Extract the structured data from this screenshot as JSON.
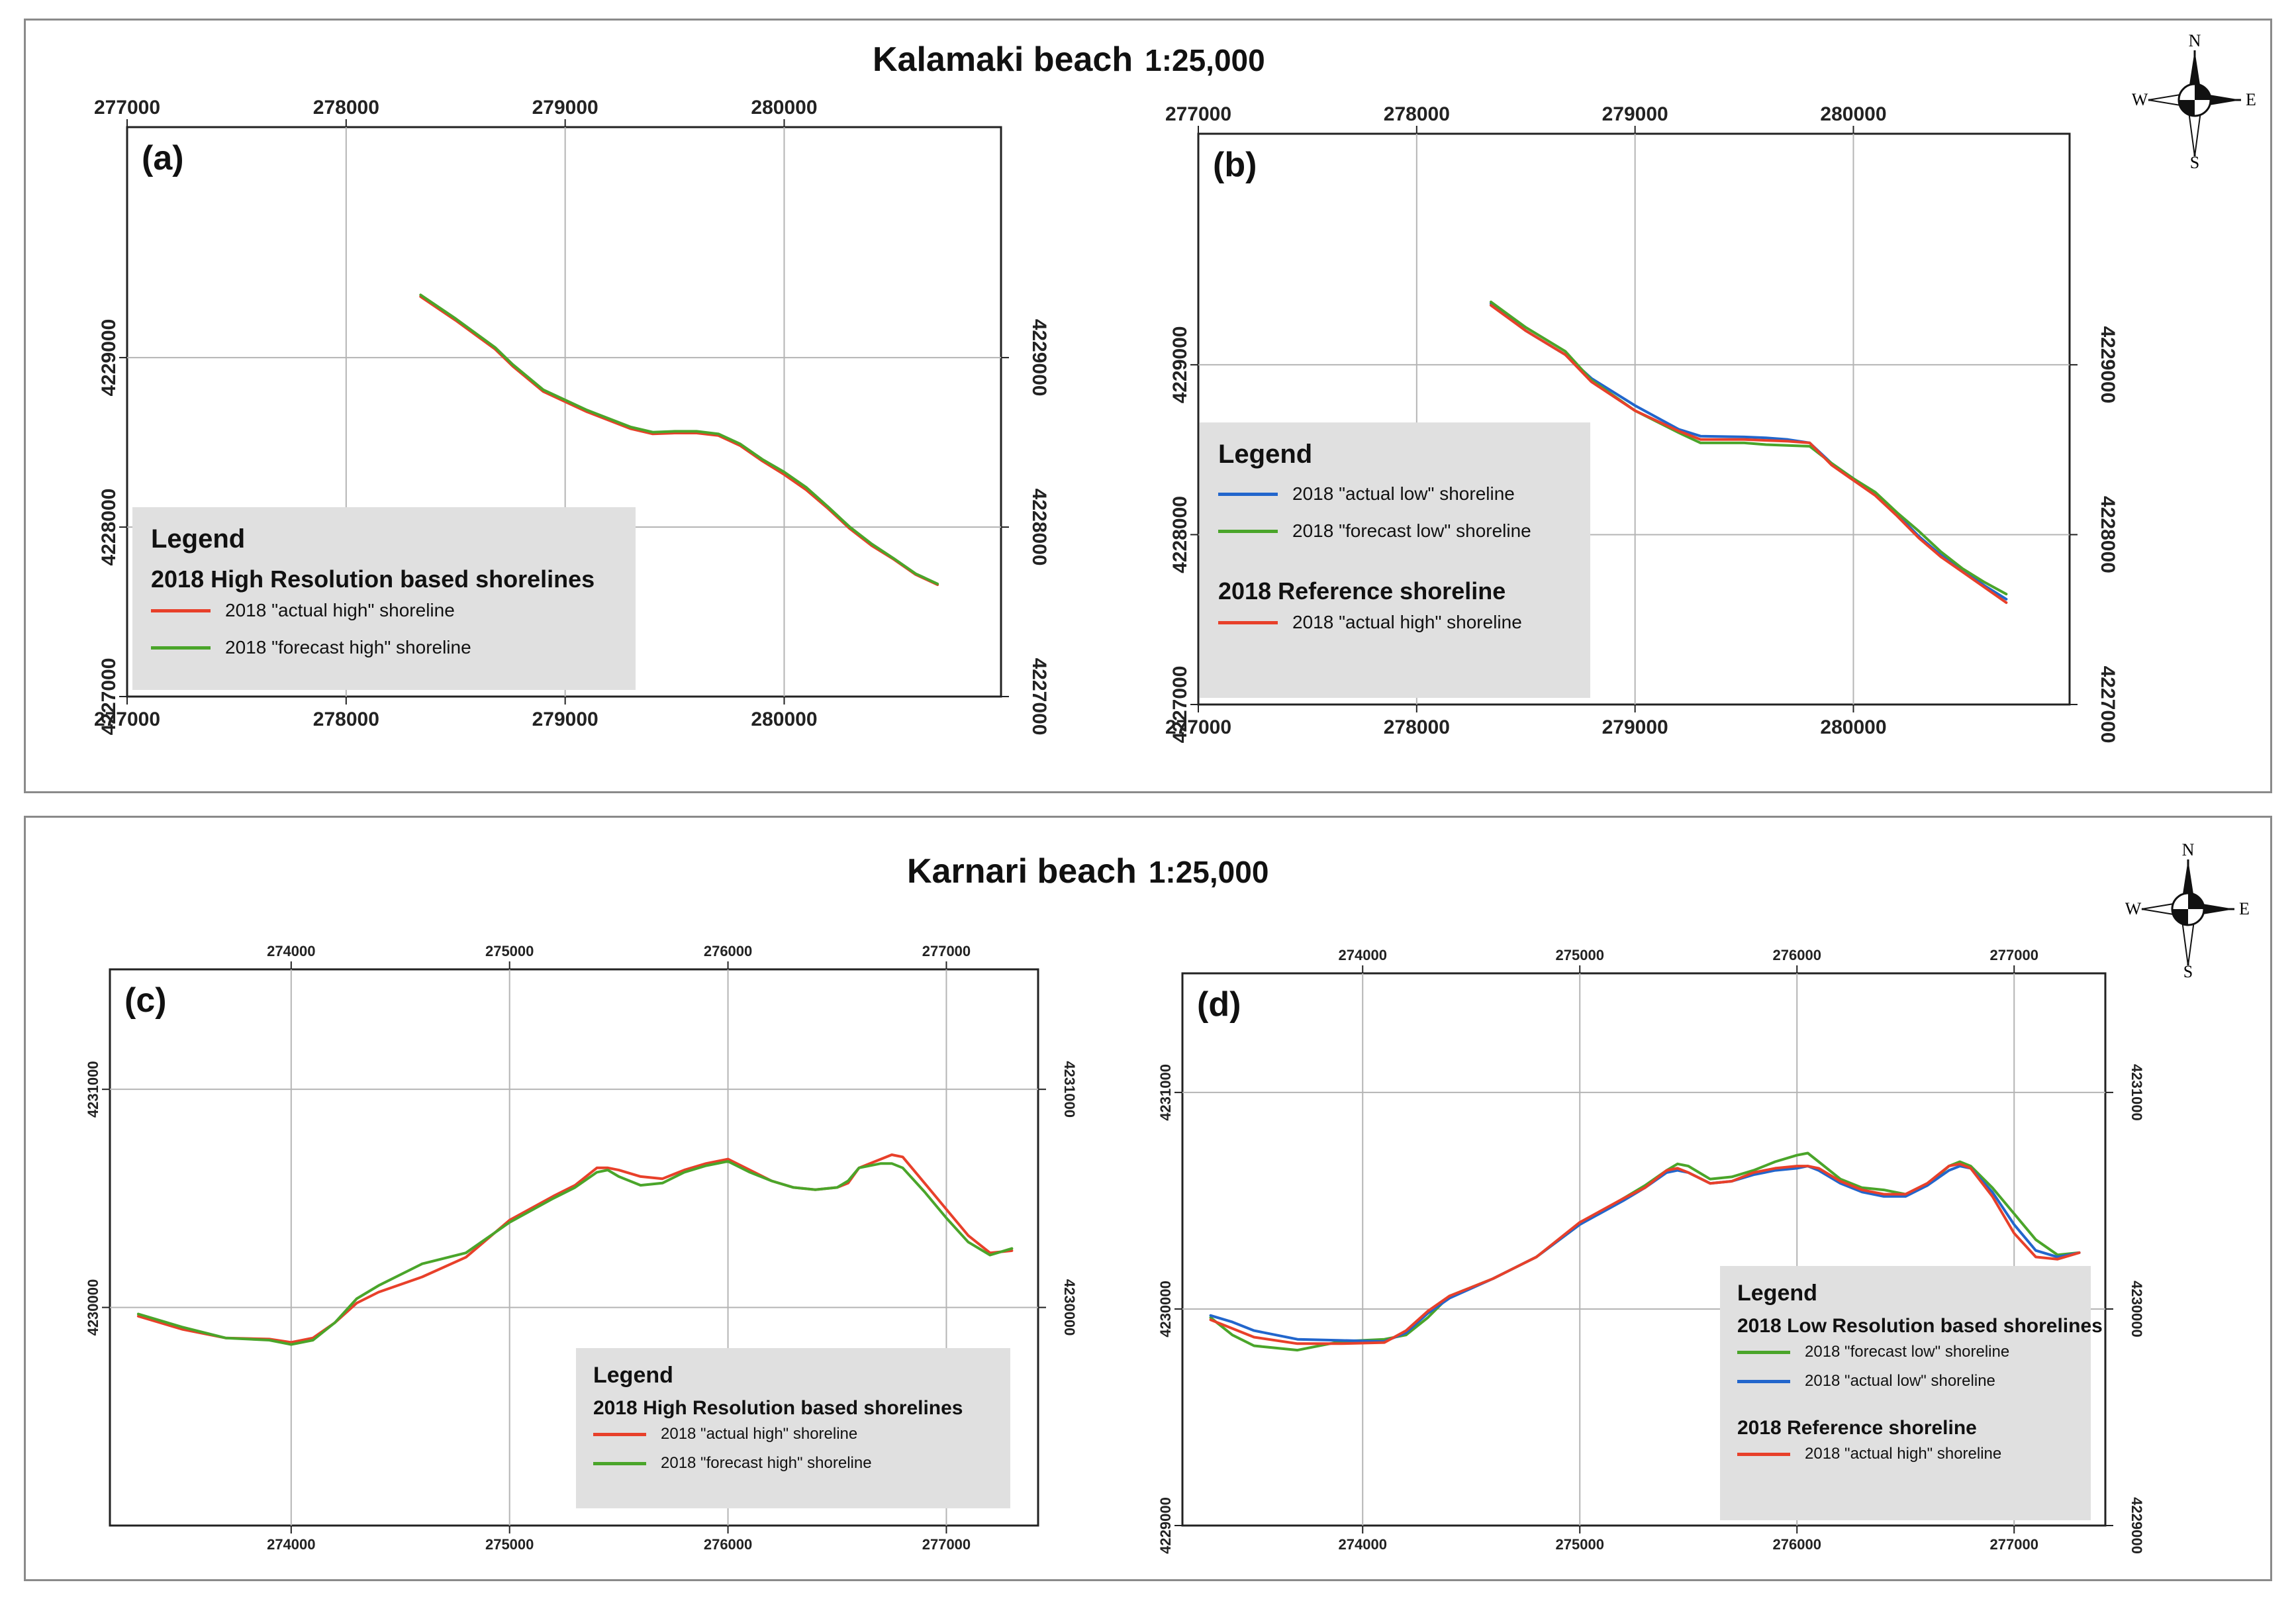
{
  "figure": {
    "top_title": "Kalamaki beach",
    "top_scale": "1:25,000",
    "bottom_title": "Karnari beach",
    "bottom_scale": "1:25,000",
    "compass_labels": {
      "n": "N",
      "s": "S",
      "e": "E",
      "w": "W"
    }
  },
  "colors": {
    "actual_high": "#e8402a",
    "forecast_high": "#4aa52a",
    "forecast_low": "#4aa52a",
    "actual_low": "#2266cc"
  },
  "chart_data": [
    {
      "id": "a",
      "panel_label": "(a)",
      "type": "line",
      "xlim": [
        277000,
        280990
      ],
      "ylim": [
        4227000,
        4230360
      ],
      "x_ticks": [
        "277000",
        "278000",
        "279000",
        "280000"
      ],
      "y_ticks": [
        "4227000",
        "4228000",
        "4229000"
      ],
      "legend": {
        "title": "Legend",
        "groups": [
          {
            "heading": "2018 High Resolution based shorelines",
            "items": [
              {
                "label": "2018 \"actual high\" shoreline",
                "color": "#e8402a"
              },
              {
                "label": "2018 \"forecast high\" shoreline",
                "color": "#4aa52a"
              }
            ]
          }
        ]
      },
      "series": [
        {
          "color": "#e8402a",
          "x": [
            278340,
            278500,
            278680,
            278760,
            278900,
            279100,
            279300,
            279400,
            279500,
            279600,
            279700,
            279800,
            279900,
            280000,
            280100,
            280200,
            280300,
            280400,
            280500,
            280600,
            280700
          ],
          "y": [
            4229360,
            4229220,
            4229050,
            4228950,
            4228800,
            4228680,
            4228580,
            4228550,
            4228555,
            4228555,
            4228540,
            4228480,
            4228390,
            4228310,
            4228220,
            4228110,
            4227990,
            4227890,
            4227810,
            4227720,
            4227660
          ]
        },
        {
          "color": "#4aa52a",
          "x": [
            278340,
            278500,
            278680,
            278760,
            278900,
            279100,
            279300,
            279400,
            279500,
            279600,
            279700,
            279800,
            279900,
            280000,
            280100,
            280200,
            280300,
            280400,
            280500,
            280600,
            280700
          ],
          "y": [
            4229370,
            4229230,
            4229060,
            4228960,
            4228810,
            4228690,
            4228590,
            4228560,
            4228565,
            4228565,
            4228550,
            4228490,
            4228400,
            4228325,
            4228235,
            4228120,
            4228000,
            4227900,
            4227815,
            4227725,
            4227665
          ]
        }
      ]
    },
    {
      "id": "b",
      "panel_label": "(b)",
      "type": "line",
      "xlim": [
        277000,
        280990
      ],
      "ylim": [
        4227000,
        4230360
      ],
      "x_ticks": [
        "277000",
        "278000",
        "279000",
        "280000"
      ],
      "y_ticks": [
        "4227000",
        "4228000",
        "4229000"
      ],
      "legend": {
        "title": "Legend",
        "groups": [
          {
            "heading": "",
            "items": [
              {
                "label": "2018 \"actual low\" shoreline",
                "color": "#2266cc"
              },
              {
                "label": "2018 \"forecast low\" shoreline",
                "color": "#4aa52a"
              }
            ]
          },
          {
            "heading": "2018 Reference shoreline",
            "items": [
              {
                "label": "2018 \"actual high\" shoreline",
                "color": "#e8402a"
              }
            ]
          }
        ]
      },
      "series": [
        {
          "color": "#2266cc",
          "x": [
            278340,
            278500,
            278680,
            278800,
            279000,
            279200,
            279300,
            279500,
            279600,
            279700,
            279800,
            279900,
            280000,
            280100,
            280200,
            280300,
            280400,
            280500,
            280600,
            280700
          ],
          "y": [
            4229360,
            4229200,
            4229060,
            4228920,
            4228760,
            4228620,
            4228580,
            4228575,
            4228570,
            4228560,
            4228540,
            4228420,
            4228330,
            4228240,
            4228120,
            4227990,
            4227880,
            4227790,
            4227700,
            4227620
          ]
        },
        {
          "color": "#4aa52a",
          "x": [
            278340,
            278500,
            278680,
            278800,
            279000,
            279200,
            279300,
            279500,
            279600,
            279700,
            279800,
            279900,
            280000,
            280100,
            280200,
            280300,
            280400,
            280500,
            280600,
            280700
          ],
          "y": [
            4229370,
            4229220,
            4229080,
            4228910,
            4228730,
            4228600,
            4228540,
            4228540,
            4228530,
            4228525,
            4228520,
            4228420,
            4228330,
            4228250,
            4228130,
            4228020,
            4227900,
            4227800,
            4227720,
            4227650
          ]
        },
        {
          "color": "#e8402a",
          "x": [
            278340,
            278500,
            278680,
            278800,
            279000,
            279200,
            279300,
            279500,
            279600,
            279700,
            279800,
            279900,
            280000,
            280100,
            280200,
            280300,
            280400,
            280500,
            280600,
            280700
          ],
          "y": [
            4229350,
            4229200,
            4229060,
            4228900,
            4228730,
            4228610,
            4228560,
            4228560,
            4228555,
            4228550,
            4228540,
            4228410,
            4228320,
            4228230,
            4228110,
            4227980,
            4227870,
            4227780,
            4227690,
            4227600
          ]
        }
      ]
    },
    {
      "id": "c",
      "panel_label": "(c)",
      "type": "line",
      "xlim": [
        273170,
        277420
      ],
      "ylim": [
        4229000,
        4231550
      ],
      "x_ticks": [
        "274000",
        "275000",
        "276000",
        "277000"
      ],
      "y_ticks": [
        "4230000",
        "4231000"
      ],
      "legend": {
        "title": "Legend",
        "groups": [
          {
            "heading": "2018 High Resolution based shorelines",
            "items": [
              {
                "label": "2018 \"actual high\" shoreline",
                "color": "#e8402a"
              },
              {
                "label": "2018 \"forecast high\" shoreline",
                "color": "#4aa52a"
              }
            ]
          }
        ]
      },
      "series": [
        {
          "color": "#e8402a",
          "x": [
            273300,
            273500,
            273700,
            273900,
            274000,
            274100,
            274200,
            274300,
            274400,
            274600,
            274800,
            275000,
            275200,
            275300,
            275400,
            275450,
            275500,
            275600,
            275700,
            275800,
            275900,
            276000,
            276100,
            276200,
            276300,
            276400,
            276500,
            276550,
            276600,
            276700,
            276750,
            276800,
            276900,
            277000,
            277100,
            277200,
            277300
          ],
          "y": [
            4229960,
            4229900,
            4229860,
            4229855,
            4229840,
            4229860,
            4229930,
            4230020,
            4230070,
            4230140,
            4230230,
            4230400,
            4230510,
            4230560,
            4230640,
            4230640,
            4230630,
            4230600,
            4230590,
            4230630,
            4230660,
            4230680,
            4230630,
            4230580,
            4230550,
            4230540,
            4230550,
            4230570,
            4230640,
            4230680,
            4230700,
            4230690,
            4230570,
            4230450,
            4230330,
            4230250,
            4230260
          ]
        },
        {
          "color": "#4aa52a",
          "x": [
            273300,
            273500,
            273700,
            273900,
            274000,
            274100,
            274200,
            274300,
            274400,
            274600,
            274800,
            275000,
            275200,
            275300,
            275400,
            275450,
            275500,
            275600,
            275700,
            275800,
            275900,
            276000,
            276100,
            276200,
            276300,
            276400,
            276500,
            276550,
            276600,
            276700,
            276750,
            276800,
            276900,
            277000,
            277100,
            277200,
            277300
          ],
          "y": [
            4229970,
            4229910,
            4229860,
            4229850,
            4229830,
            4229850,
            4229930,
            4230040,
            4230100,
            4230200,
            4230250,
            4230390,
            4230500,
            4230550,
            4230620,
            4230630,
            4230600,
            4230560,
            4230570,
            4230620,
            4230650,
            4230670,
            4230620,
            4230580,
            4230550,
            4230540,
            4230550,
            4230580,
            4230640,
            4230660,
            4230660,
            4230640,
            4230530,
            4230410,
            4230300,
            4230240,
            4230270
          ]
        }
      ]
    },
    {
      "id": "d",
      "panel_label": "(d)",
      "type": "line",
      "xlim": [
        273170,
        277420
      ],
      "ylim": [
        4229000,
        4231550
      ],
      "x_ticks": [
        "274000",
        "275000",
        "276000",
        "277000"
      ],
      "y_ticks": [
        "4229000",
        "4230000",
        "4231000"
      ],
      "legend": {
        "title": "Legend",
        "groups": [
          {
            "heading": "2018 Low Resolution based shorelines",
            "items": [
              {
                "label": "2018 \"forecast low\" shoreline",
                "color": "#4aa52a"
              },
              {
                "label": "2018 \"actual low\" shoreline",
                "color": "#2266cc"
              }
            ]
          },
          {
            "heading": "2018 Reference shoreline",
            "items": [
              {
                "label": "2018 \"actual high\" shoreline",
                "color": "#e8402a"
              }
            ]
          }
        ]
      },
      "series": [
        {
          "color": "#4aa52a",
          "x": [
            273300,
            273400,
            273500,
            273700,
            273900,
            274100,
            274200,
            274300,
            274400,
            274600,
            274800,
            275000,
            275200,
            275300,
            275400,
            275450,
            275500,
            275600,
            275700,
            275800,
            275900,
            276000,
            276050,
            276100,
            276200,
            276300,
            276400,
            276500,
            276600,
            276700,
            276750,
            276800,
            276900,
            277000,
            277100,
            277200,
            277300
          ],
          "y": [
            4229960,
            4229880,
            4229830,
            4229810,
            4229850,
            4229860,
            4229880,
            4229960,
            4230060,
            4230140,
            4230240,
            4230390,
            4230510,
            4230570,
            4230640,
            4230670,
            4230660,
            4230600,
            4230610,
            4230640,
            4230680,
            4230710,
            4230720,
            4230680,
            4230600,
            4230560,
            4230550,
            4230530,
            4230570,
            4230660,
            4230680,
            4230660,
            4230560,
            4230440,
            4230320,
            4230250,
            4230260
          ]
        },
        {
          "color": "#2266cc",
          "x": [
            273300,
            273400,
            273500,
            273700,
            273900,
            274100,
            274200,
            274300,
            274400,
            274600,
            274800,
            275000,
            275200,
            275300,
            275400,
            275450,
            275500,
            275600,
            275700,
            275800,
            275900,
            276000,
            276050,
            276100,
            276200,
            276300,
            276400,
            276500,
            276600,
            276700,
            276750,
            276800,
            276900,
            277000,
            277100,
            277200,
            277300
          ],
          "y": [
            4229970,
            4229940,
            4229900,
            4229860,
            4229855,
            4229850,
            4229890,
            4229980,
            4230050,
            4230140,
            4230240,
            4230390,
            4230500,
            4230560,
            4230630,
            4230640,
            4230630,
            4230580,
            4230590,
            4230620,
            4230640,
            4230650,
            4230660,
            4230640,
            4230580,
            4230540,
            4230520,
            4230520,
            4230570,
            4230640,
            4230660,
            4230650,
            4230540,
            4230390,
            4230270,
            4230240,
            4230260
          ]
        },
        {
          "color": "#e8402a",
          "x": [
            273300,
            273400,
            273500,
            273700,
            273900,
            274100,
            274200,
            274300,
            274400,
            274600,
            274800,
            275000,
            275200,
            275300,
            275400,
            275450,
            275500,
            275600,
            275700,
            275800,
            275900,
            276000,
            276050,
            276100,
            276200,
            276300,
            276400,
            276500,
            276600,
            276700,
            276750,
            276800,
            276900,
            277000,
            277100,
            277200,
            277300
          ],
          "y": [
            4229950,
            4229910,
            4229870,
            4229840,
            4229840,
            4229845,
            4229900,
            4229990,
            4230060,
            4230140,
            4230240,
            4230400,
            4230510,
            4230560,
            4230640,
            4230650,
            4230630,
            4230580,
            4230590,
            4230630,
            4230650,
            4230660,
            4230660,
            4230650,
            4230590,
            4230550,
            4230530,
            4230530,
            4230580,
            4230660,
            4230670,
            4230650,
            4230520,
            4230350,
            4230240,
            4230230,
            4230260
          ]
        }
      ]
    }
  ]
}
